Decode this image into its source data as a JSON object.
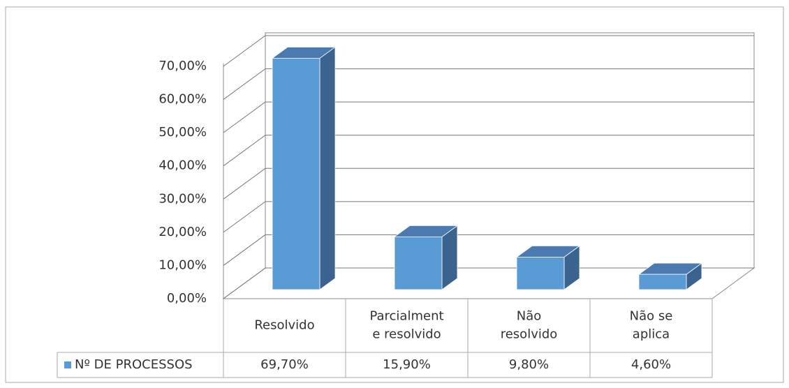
{
  "chart_data": {
    "type": "bar3d",
    "categories": [
      [
        "Resolvido"
      ],
      [
        "Parcialment",
        "e resolvido"
      ],
      [
        "Não",
        "resolvido"
      ],
      [
        "Não se",
        "aplica"
      ]
    ],
    "series": [
      {
        "name": "Nº DE PROCESSOS",
        "color": "#5b9bd5",
        "values": [
          69.7,
          15.9,
          9.8,
          4.6
        ],
        "value_labels": [
          "69,70%",
          "15,90%",
          "9,80%",
          "4,60%"
        ]
      }
    ],
    "ylim": [
      0,
      70
    ],
    "yticks": [
      {
        "value": 0,
        "label": "0,00%"
      },
      {
        "value": 10,
        "label": "10,00%"
      },
      {
        "value": 20,
        "label": "20,00%"
      },
      {
        "value": 30,
        "label": "30,00%"
      },
      {
        "value": 40,
        "label": "40,00%"
      },
      {
        "value": 50,
        "label": "50,00%"
      },
      {
        "value": 60,
        "label": "60,00%"
      },
      {
        "value": 70,
        "label": "70,00%"
      }
    ],
    "grid": true
  }
}
